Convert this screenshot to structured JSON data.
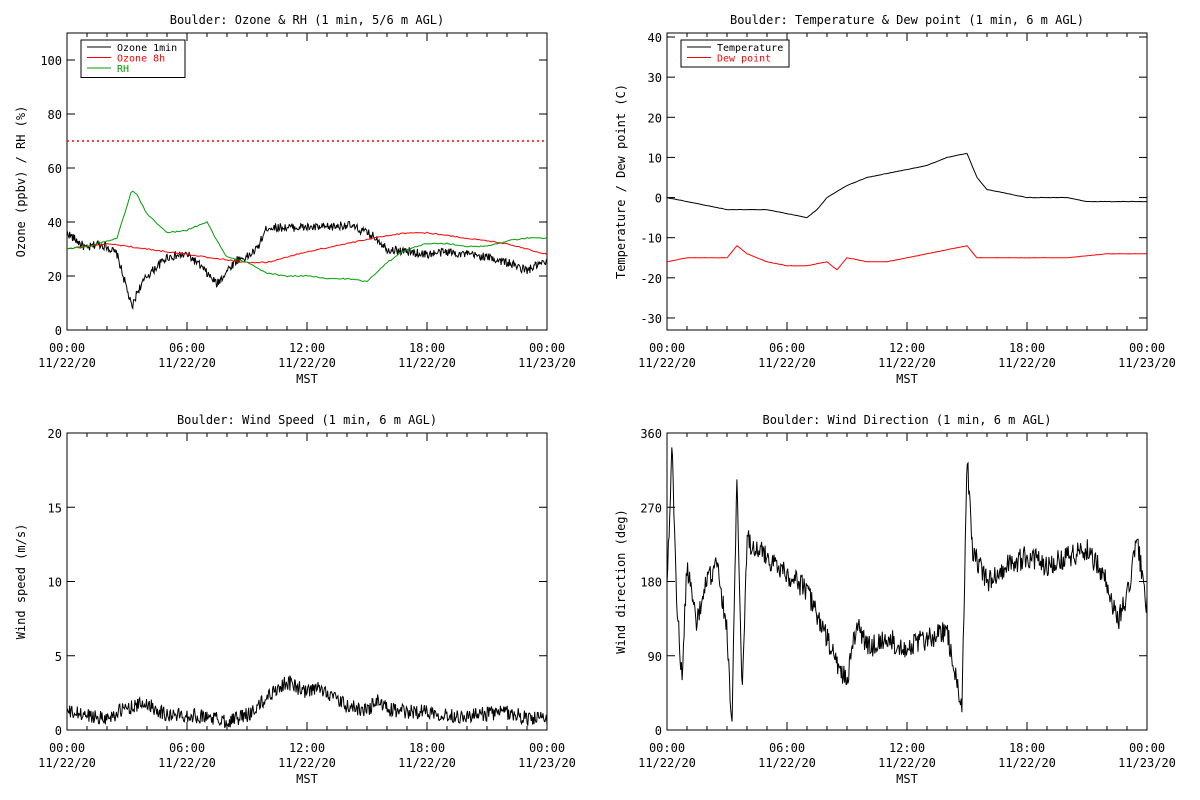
{
  "chart_data": [
    {
      "type": "line",
      "title": "Boulder: Ozone & RH (1 min, 5/6 m AGL)",
      "xlabel": "MST",
      "ylabel": "Ozone (ppbv) / RH (%)",
      "xlim": [
        "11/22/20 00:00",
        "11/23/20 00:00"
      ],
      "x_ticks": [
        {
          "time": "00:00",
          "date": "11/22/20"
        },
        {
          "time": "06:00",
          "date": "11/22/20"
        },
        {
          "time": "12:00",
          "date": "11/22/20"
        },
        {
          "time": "18:00",
          "date": "11/22/20"
        },
        {
          "time": "00:00",
          "date": "11/23/20"
        }
      ],
      "ylim": [
        0,
        110
      ],
      "y_ticks": [
        "0",
        "20",
        "40",
        "60",
        "80",
        "100"
      ],
      "y_tick_values": [
        0,
        20,
        40,
        60,
        80,
        100
      ],
      "hline": {
        "y": 70,
        "style": "dotted",
        "color": "#ff0000"
      },
      "legend_position": "top-left",
      "series": [
        {
          "name": "Ozone 1min",
          "color": "#000000",
          "x_hours": [
            0,
            0.5,
            1,
            1.5,
            2,
            2.5,
            3,
            3.25,
            3.5,
            4,
            5,
            6,
            6.5,
            7,
            7.5,
            8,
            8.5,
            9,
            9.5,
            10,
            11,
            12,
            13,
            14,
            15,
            15.5,
            16,
            17,
            18,
            19,
            20,
            21,
            22,
            23,
            23.5,
            24
          ],
          "values": [
            36,
            33,
            30,
            32,
            31,
            28,
            15,
            8,
            14,
            20,
            27,
            28,
            25,
            21,
            17,
            22,
            26,
            27,
            30,
            38,
            38,
            38,
            38,
            39,
            36,
            34,
            30,
            29,
            28,
            29,
            28,
            27,
            25,
            22,
            24,
            25
          ]
        },
        {
          "name": "Ozone 8h",
          "color": "#ff0000",
          "x_hours": [
            0,
            2,
            4,
            6,
            8,
            9,
            10,
            11,
            12,
            14,
            16,
            17,
            18,
            20,
            22,
            24
          ],
          "values": [
            30,
            32,
            30,
            28,
            26,
            25,
            25,
            27,
            29,
            32,
            35,
            36,
            36,
            34,
            32,
            28
          ]
        },
        {
          "name": "RH",
          "color": "#00a000",
          "x_hours": [
            0,
            1,
            2,
            2.5,
            3,
            3.25,
            3.5,
            4,
            5,
            6,
            7,
            7.5,
            8,
            9,
            10,
            11,
            12,
            13,
            14,
            15,
            16,
            17,
            18,
            19,
            20,
            21,
            22,
            23,
            24
          ],
          "values": [
            30,
            31,
            33,
            34,
            46,
            52,
            50,
            43,
            36,
            37,
            40,
            33,
            27,
            25,
            21,
            20,
            20,
            19,
            19,
            18,
            25,
            30,
            32,
            32,
            31,
            31,
            33,
            34,
            34
          ]
        }
      ]
    },
    {
      "type": "line",
      "title": "Boulder: Temperature & Dew point (1 min, 6 m AGL)",
      "xlabel": "MST",
      "ylabel": "Temperature / Dew point (C)",
      "xlim": [
        "11/22/20 00:00",
        "11/23/20 00:00"
      ],
      "x_ticks": [
        {
          "time": "00:00",
          "date": "11/22/20"
        },
        {
          "time": "06:00",
          "date": "11/22/20"
        },
        {
          "time": "12:00",
          "date": "11/22/20"
        },
        {
          "time": "18:00",
          "date": "11/22/20"
        },
        {
          "time": "00:00",
          "date": "11/23/20"
        }
      ],
      "ylim": [
        -33,
        41
      ],
      "y_ticks": [
        "-30",
        "-20",
        "-10",
        "0",
        "10",
        "20",
        "30",
        "40"
      ],
      "y_tick_values": [
        -30,
        -20,
        -10,
        0,
        10,
        20,
        30,
        40
      ],
      "legend_position": "top-left",
      "series": [
        {
          "name": "Temperature",
          "color": "#000000",
          "x_hours": [
            0,
            1,
            2,
            3,
            4,
            5,
            6,
            7,
            7.5,
            8,
            9,
            10,
            11,
            12,
            13,
            14,
            15,
            15.5,
            16,
            17,
            18,
            19,
            20,
            21,
            22,
            23,
            24
          ],
          "values": [
            0,
            -1,
            -2,
            -3,
            -3,
            -3,
            -4,
            -5,
            -3,
            0,
            3,
            5,
            6,
            7,
            8,
            10,
            11,
            5,
            2,
            1,
            0,
            0,
            0,
            -1,
            -1,
            -1,
            -1
          ]
        },
        {
          "name": "Dew point",
          "color": "#ff0000",
          "x_hours": [
            0,
            1,
            2,
            3,
            3.5,
            4,
            5,
            6,
            7,
            8,
            8.5,
            9,
            10,
            11,
            12,
            13,
            14,
            15,
            15.5,
            16,
            18,
            20,
            22,
            24
          ],
          "values": [
            -16,
            -15,
            -15,
            -15,
            -12,
            -14,
            -16,
            -17,
            -17,
            -16,
            -18,
            -15,
            -16,
            -16,
            -15,
            -14,
            -13,
            -12,
            -15,
            -15,
            -15,
            -15,
            -14,
            -14
          ]
        }
      ]
    },
    {
      "type": "line",
      "title": "Boulder: Wind Speed (1 min, 6 m AGL)",
      "xlabel": "MST",
      "ylabel": "Wind speed (m/s)",
      "xlim": [
        "11/22/20 00:00",
        "11/23/20 00:00"
      ],
      "x_ticks": [
        {
          "time": "00:00",
          "date": "11/22/20"
        },
        {
          "time": "06:00",
          "date": "11/22/20"
        },
        {
          "time": "12:00",
          "date": "11/22/20"
        },
        {
          "time": "18:00",
          "date": "11/22/20"
        },
        {
          "time": "00:00",
          "date": "11/23/20"
        }
      ],
      "ylim": [
        0,
        20
      ],
      "y_ticks": [
        "0",
        "5",
        "10",
        "15",
        "20"
      ],
      "y_tick_values": [
        0,
        5,
        10,
        15,
        20
      ],
      "series": [
        {
          "name": "",
          "color": "#000000",
          "x_hours": [
            0,
            1,
            2,
            3,
            4,
            5,
            6,
            7,
            8,
            9,
            9.5,
            10,
            10.5,
            11,
            11.5,
            12,
            12.5,
            13,
            13.5,
            14,
            15,
            15.5,
            16,
            17,
            18,
            19,
            20,
            21,
            22,
            23,
            24
          ],
          "values": [
            1.2,
            1.0,
            0.8,
            1.5,
            1.8,
            1.0,
            1.0,
            0.9,
            0.6,
            1.0,
            1.5,
            2.2,
            2.8,
            3.2,
            2.9,
            2.5,
            2.8,
            2.6,
            2.0,
            1.6,
            1.3,
            2.0,
            1.4,
            1.2,
            1.3,
            1.0,
            0.9,
            1.1,
            1.2,
            0.8,
            0.7
          ]
        }
      ]
    },
    {
      "type": "line",
      "title": "Boulder: Wind Direction (1 min, 6 m AGL)",
      "xlabel": "MST",
      "ylabel": "Wind direction (deg)",
      "xlim": [
        "11/22/20 00:00",
        "11/23/20 00:00"
      ],
      "x_ticks": [
        {
          "time": "00:00",
          "date": "11/22/20"
        },
        {
          "time": "06:00",
          "date": "11/22/20"
        },
        {
          "time": "12:00",
          "date": "11/22/20"
        },
        {
          "time": "18:00",
          "date": "11/22/20"
        },
        {
          "time": "00:00",
          "date": "11/23/20"
        }
      ],
      "ylim": [
        0,
        360
      ],
      "y_ticks": [
        "0",
        "90",
        "180",
        "270",
        "360"
      ],
      "y_tick_values": [
        0,
        90,
        180,
        270,
        360
      ],
      "series": [
        {
          "name": "",
          "color": "#000000",
          "x_hours": [
            0,
            0.25,
            0.5,
            0.75,
            1,
            1.5,
            2,
            2.5,
            3,
            3.25,
            3.5,
            3.75,
            4,
            5,
            6,
            7,
            7.5,
            8,
            8.5,
            9,
            9.5,
            10,
            11,
            12,
            13,
            14,
            14.75,
            15,
            15.25,
            16,
            17,
            18,
            19,
            20,
            21,
            22,
            22.5,
            23,
            23.5,
            24
          ],
          "values": [
            180,
            340,
            150,
            60,
            200,
            130,
            180,
            200,
            120,
            5,
            310,
            40,
            230,
            210,
            190,
            170,
            140,
            110,
            80,
            60,
            130,
            100,
            110,
            100,
            110,
            120,
            20,
            340,
            220,
            180,
            200,
            210,
            200,
            210,
            220,
            180,
            130,
            160,
            230,
            150
          ]
        }
      ]
    }
  ]
}
